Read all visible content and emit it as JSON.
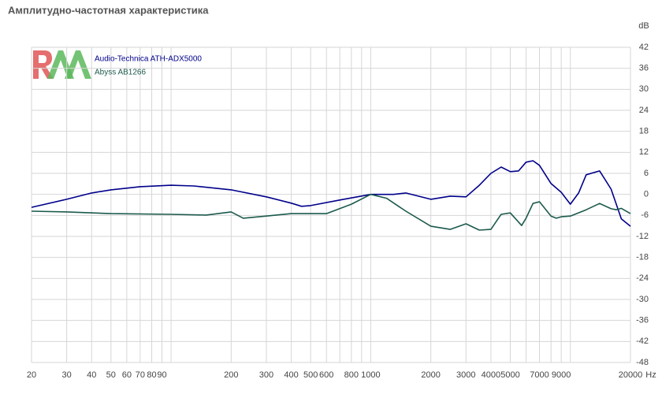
{
  "chart_data": {
    "type": "line",
    "title": "Амплитудно-частотная характеристика",
    "x_label": "Hz",
    "y_label": "dB",
    "x_scale": "log",
    "xlim": [
      20,
      20000
    ],
    "ylim": [
      -48,
      42
    ],
    "xticks": [
      20,
      30,
      40,
      50,
      60,
      70,
      80,
      90,
      200,
      300,
      400,
      500,
      600,
      800,
      1000,
      2000,
      3000,
      4000,
      5000,
      7000,
      9000,
      20000
    ],
    "xgrid": [
      20,
      30,
      40,
      50,
      60,
      70,
      80,
      90,
      100,
      200,
      300,
      400,
      500,
      600,
      700,
      800,
      900,
      1000,
      2000,
      3000,
      4000,
      5000,
      6000,
      7000,
      8000,
      9000,
      10000,
      20000
    ],
    "yticks": [
      42,
      36,
      30,
      24,
      18,
      12,
      6,
      0,
      -6,
      -12,
      -18,
      -24,
      -30,
      -36,
      -42,
      -48
    ],
    "grid": true,
    "series": [
      {
        "name": "Audio-Technica ATH-ADX5000",
        "color": "#00008b",
        "x": [
          20,
          30,
          40,
          50,
          70,
          100,
          130,
          200,
          300,
          400,
          450,
          500,
          700,
          1000,
          1300,
          1500,
          2000,
          2500,
          3000,
          3500,
          4000,
          4500,
          5000,
          5500,
          6000,
          6500,
          7000,
          8000,
          9000,
          10000,
          11000,
          12000,
          14000,
          16000,
          18000,
          20000
        ],
        "values": [
          -3.7,
          -1.4,
          0.4,
          1.3,
          2.2,
          2.6,
          2.4,
          1.3,
          -0.7,
          -2.5,
          -3.4,
          -3.2,
          -1.6,
          0,
          0,
          0.4,
          -1.4,
          -0.5,
          -0.7,
          2.6,
          6,
          7.8,
          6.5,
          6.7,
          9.2,
          9.6,
          8.3,
          3.1,
          0.6,
          -2.8,
          0.4,
          5.6,
          6.7,
          1.5,
          -7,
          -9.1
        ]
      },
      {
        "name": "Abyss AB1266",
        "color": "#1c5a4c",
        "x": [
          20,
          30,
          50,
          100,
          150,
          200,
          230,
          300,
          400,
          600,
          800,
          1000,
          1200,
          1500,
          2000,
          2500,
          3000,
          3500,
          4000,
          4500,
          5000,
          5700,
          6000,
          6500,
          7000,
          8000,
          8500,
          9000,
          10000,
          12000,
          14000,
          16000,
          17000,
          18000,
          20000
        ],
        "values": [
          -4.8,
          -5,
          -5.5,
          -5.7,
          -5.9,
          -5,
          -6.8,
          -6.2,
          -5.5,
          -5.5,
          -2.8,
          0,
          -1.1,
          -4.8,
          -9.1,
          -10,
          -8.4,
          -10.2,
          -10,
          -5.7,
          -5.3,
          -8.9,
          -6.8,
          -2.6,
          -2.1,
          -6.2,
          -6.8,
          -6.4,
          -6.2,
          -4.4,
          -2.6,
          -4.1,
          -4.4,
          -4,
          -5.5
        ]
      }
    ]
  }
}
